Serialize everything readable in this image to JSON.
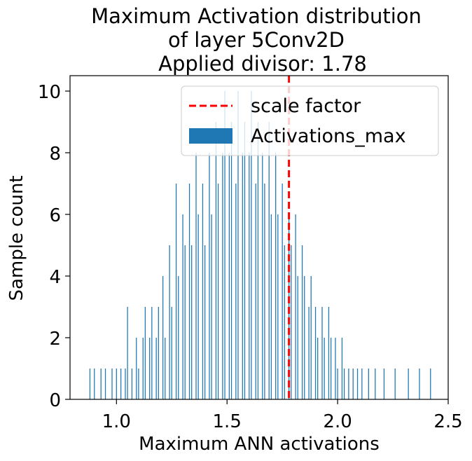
{
  "chart_data": {
    "type": "bar",
    "title": [
      "Maximum Activation distribution",
      "of layer 5Conv2D",
      "Applied divisor: 1.78"
    ],
    "xlabel": "Maximum ANN activations",
    "ylabel": "Sample count",
    "xlim": [
      0.79,
      2.5
    ],
    "ylim": [
      0,
      10.5
    ],
    "xticks": [
      1.0,
      1.5,
      2.0,
      2.5
    ],
    "xtick_labels": [
      "1.0",
      "1.5",
      "2.0",
      "2.5"
    ],
    "yticks": [
      0,
      2,
      4,
      6,
      8,
      10
    ],
    "ytick_labels": [
      "0",
      "2",
      "4",
      "6",
      "8",
      "10"
    ],
    "grid": false,
    "legend_position": "top-right",
    "series": [
      {
        "name": "Activations_max",
        "kind": "histogram",
        "color": "#1f77b4",
        "bins": [
          {
            "x": 0.88,
            "count": 1
          },
          {
            "x": 0.9,
            "count": 1
          },
          {
            "x": 0.93,
            "count": 1
          },
          {
            "x": 0.95,
            "count": 1
          },
          {
            "x": 0.98,
            "count": 1
          },
          {
            "x": 1.0,
            "count": 1
          },
          {
            "x": 1.02,
            "count": 1
          },
          {
            "x": 1.04,
            "count": 1
          },
          {
            "x": 1.05,
            "count": 3
          },
          {
            "x": 1.07,
            "count": 1
          },
          {
            "x": 1.09,
            "count": 2
          },
          {
            "x": 1.1,
            "count": 1
          },
          {
            "x": 1.12,
            "count": 2
          },
          {
            "x": 1.13,
            "count": 3
          },
          {
            "x": 1.15,
            "count": 2
          },
          {
            "x": 1.16,
            "count": 3
          },
          {
            "x": 1.18,
            "count": 2
          },
          {
            "x": 1.19,
            "count": 3
          },
          {
            "x": 1.21,
            "count": 4
          },
          {
            "x": 1.22,
            "count": 2
          },
          {
            "x": 1.24,
            "count": 5
          },
          {
            "x": 1.25,
            "count": 3
          },
          {
            "x": 1.27,
            "count": 7
          },
          {
            "x": 1.28,
            "count": 4
          },
          {
            "x": 1.3,
            "count": 6
          },
          {
            "x": 1.31,
            "count": 5
          },
          {
            "x": 1.33,
            "count": 7
          },
          {
            "x": 1.34,
            "count": 5
          },
          {
            "x": 1.36,
            "count": 8
          },
          {
            "x": 1.37,
            "count": 6
          },
          {
            "x": 1.39,
            "count": 7
          },
          {
            "x": 1.4,
            "count": 5
          },
          {
            "x": 1.42,
            "count": 8
          },
          {
            "x": 1.43,
            "count": 6
          },
          {
            "x": 1.45,
            "count": 9
          },
          {
            "x": 1.46,
            "count": 7
          },
          {
            "x": 1.48,
            "count": 8
          },
          {
            "x": 1.49,
            "count": 10
          },
          {
            "x": 1.51,
            "count": 8
          },
          {
            "x": 1.52,
            "count": 9
          },
          {
            "x": 1.54,
            "count": 7
          },
          {
            "x": 1.55,
            "count": 10
          },
          {
            "x": 1.57,
            "count": 8
          },
          {
            "x": 1.58,
            "count": 9
          },
          {
            "x": 1.6,
            "count": 8
          },
          {
            "x": 1.61,
            "count": 10
          },
          {
            "x": 1.63,
            "count": 7
          },
          {
            "x": 1.64,
            "count": 9
          },
          {
            "x": 1.66,
            "count": 8
          },
          {
            "x": 1.67,
            "count": 7
          },
          {
            "x": 1.69,
            "count": 9
          },
          {
            "x": 1.7,
            "count": 6
          },
          {
            "x": 1.72,
            "count": 8
          },
          {
            "x": 1.73,
            "count": 6
          },
          {
            "x": 1.75,
            "count": 7
          },
          {
            "x": 1.76,
            "count": 5
          },
          {
            "x": 1.78,
            "count": 6
          },
          {
            "x": 1.79,
            "count": 5
          },
          {
            "x": 1.81,
            "count": 6
          },
          {
            "x": 1.82,
            "count": 4
          },
          {
            "x": 1.84,
            "count": 5
          },
          {
            "x": 1.85,
            "count": 4
          },
          {
            "x": 1.87,
            "count": 3
          },
          {
            "x": 1.88,
            "count": 4
          },
          {
            "x": 1.9,
            "count": 3
          },
          {
            "x": 1.91,
            "count": 2
          },
          {
            "x": 1.93,
            "count": 3
          },
          {
            "x": 1.94,
            "count": 2
          },
          {
            "x": 1.96,
            "count": 3
          },
          {
            "x": 1.97,
            "count": 2
          },
          {
            "x": 1.99,
            "count": 2
          },
          {
            "x": 2.0,
            "count": 1
          },
          {
            "x": 2.02,
            "count": 2
          },
          {
            "x": 2.03,
            "count": 1
          },
          {
            "x": 2.05,
            "count": 1
          },
          {
            "x": 2.07,
            "count": 1
          },
          {
            "x": 2.09,
            "count": 1
          },
          {
            "x": 2.11,
            "count": 1
          },
          {
            "x": 2.14,
            "count": 1
          },
          {
            "x": 2.17,
            "count": 1
          },
          {
            "x": 2.21,
            "count": 1
          },
          {
            "x": 2.26,
            "count": 1
          },
          {
            "x": 2.32,
            "count": 1
          },
          {
            "x": 2.37,
            "count": 1
          },
          {
            "x": 2.42,
            "count": 1
          }
        ]
      },
      {
        "name": "scale factor",
        "kind": "vline",
        "x": 1.78,
        "color": "#ff0000",
        "style": "dashed"
      }
    ]
  }
}
